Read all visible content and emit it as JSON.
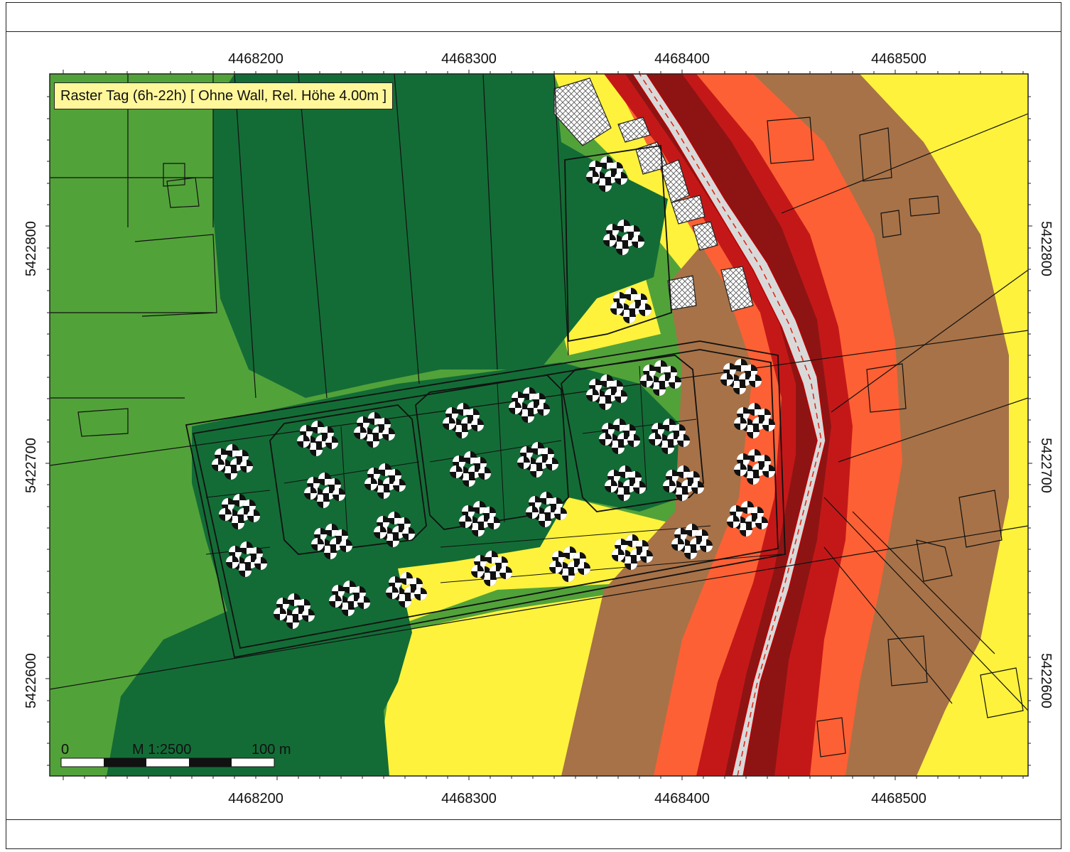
{
  "map": {
    "title": "Raster Tag (6h-22h)  [ Ohne Wall, Rel. Höhe  4.00m ]",
    "x_ticks_top": [
      "4468200",
      "4468300",
      "4468400",
      "4468500"
    ],
    "x_ticks_bottom": [
      "4468200",
      "4468300",
      "4468400",
      "4468500"
    ],
    "y_ticks_left": [
      "5422800",
      "5422700",
      "5422600"
    ],
    "y_ticks_right": [
      "5422800",
      "5422700",
      "5422600"
    ],
    "scale_bar": {
      "start": "0",
      "scale": "M 1:2500",
      "end": "100 m"
    },
    "colors": {
      "light_green": "#52a23a",
      "dark_green": "#136c36",
      "yellow": "#fef23c",
      "brown": "#a77248",
      "orange": "#fd6034",
      "red": "#c41818",
      "dark_red": "#8e1414",
      "road": "#d9d9d9"
    }
  }
}
